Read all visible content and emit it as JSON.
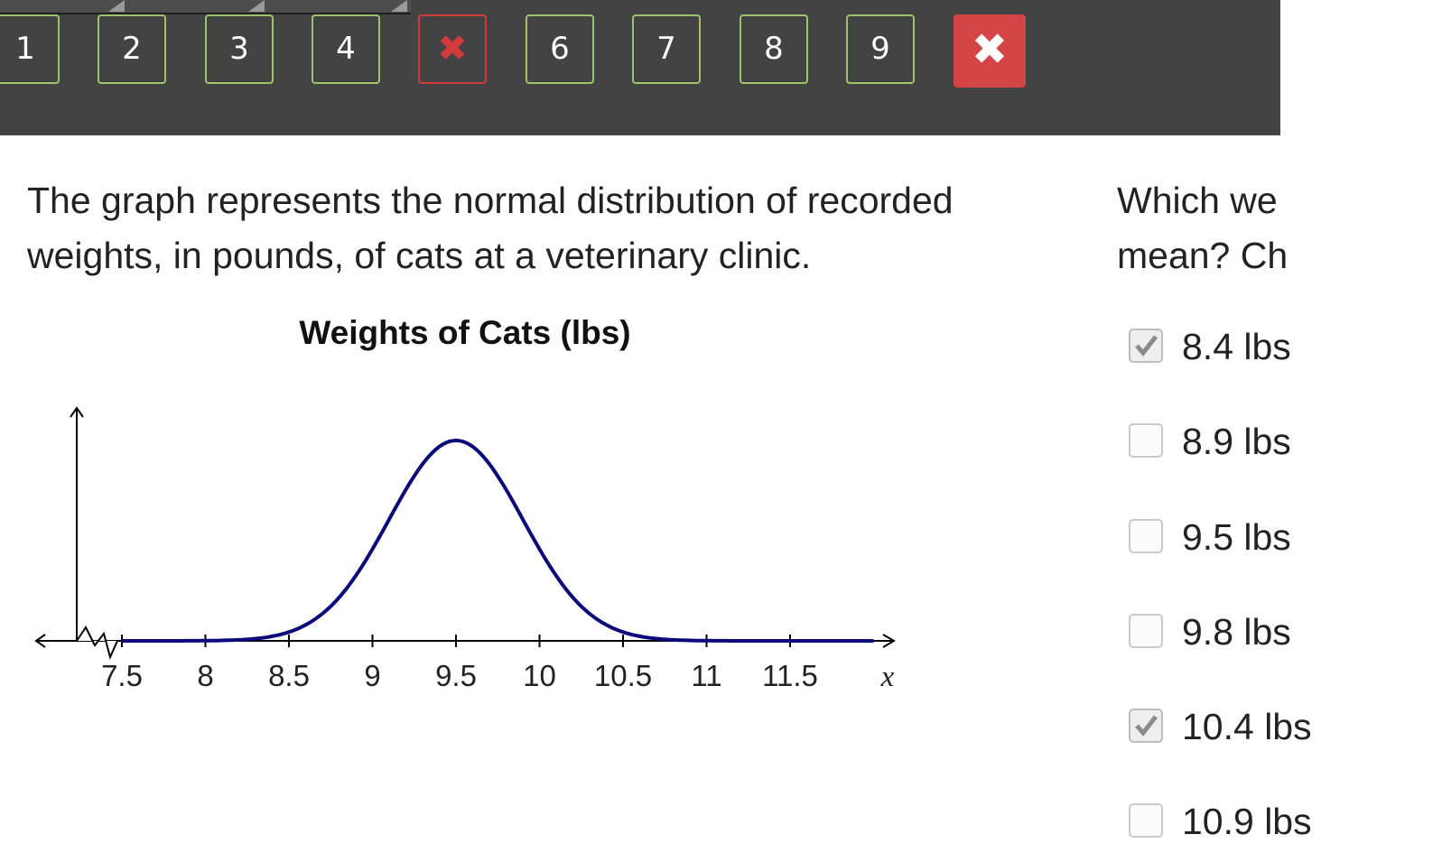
{
  "nav": {
    "buttons": [
      {
        "label": "1",
        "state": "answered"
      },
      {
        "label": "2",
        "state": "answered"
      },
      {
        "label": "3",
        "state": "answered"
      },
      {
        "label": "4",
        "state": "answered"
      },
      {
        "label": "✖",
        "state": "incorrect"
      },
      {
        "label": "6",
        "state": "answered"
      },
      {
        "label": "7",
        "state": "answered"
      },
      {
        "label": "8",
        "state": "answered"
      },
      {
        "label": "9",
        "state": "answered"
      }
    ],
    "close_label": "✖"
  },
  "question": {
    "text": "The graph represents the normal distribution of recorded weights, in pounds, of cats at a veterinary clinic.",
    "prompt_visible": "Which we\nmean? Ch"
  },
  "chart_data": {
    "type": "line",
    "title": "Weights of Cats (lbs)",
    "xlabel": "x",
    "ylabel": "",
    "x_ticks": [
      "7.5",
      "8",
      "8.5",
      "9",
      "9.5",
      "10",
      "10.5",
      "11",
      "11.5"
    ],
    "xlim": [
      7.5,
      12
    ],
    "distribution": {
      "kind": "normal",
      "mean": 9.5,
      "std_dev": 0.4
    },
    "grid": false,
    "axis_break": true
  },
  "options": [
    {
      "label": "8.4 lbs",
      "checked": true
    },
    {
      "label": "8.9 lbs",
      "checked": false
    },
    {
      "label": "9.5 lbs",
      "checked": false
    },
    {
      "label": "9.8 lbs",
      "checked": false
    },
    {
      "label": "10.4 lbs",
      "checked": true
    },
    {
      "label": "10.9 lbs",
      "checked": false
    }
  ],
  "colors": {
    "topbar": "#434343",
    "answered_border": "#9dc36b",
    "incorrect": "#d33b3b",
    "close_bg": "#d64545",
    "curve": "#0a0a7a"
  }
}
